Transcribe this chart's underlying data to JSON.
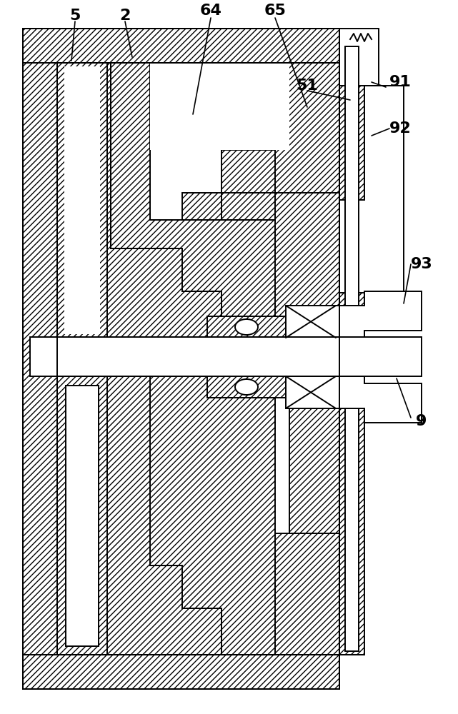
{
  "bg_color": "#ffffff",
  "line_color": "#000000",
  "label_fontsize": 16,
  "figsize": [
    6.41,
    10.0
  ],
  "dpi": 100,
  "lw": 1.4
}
